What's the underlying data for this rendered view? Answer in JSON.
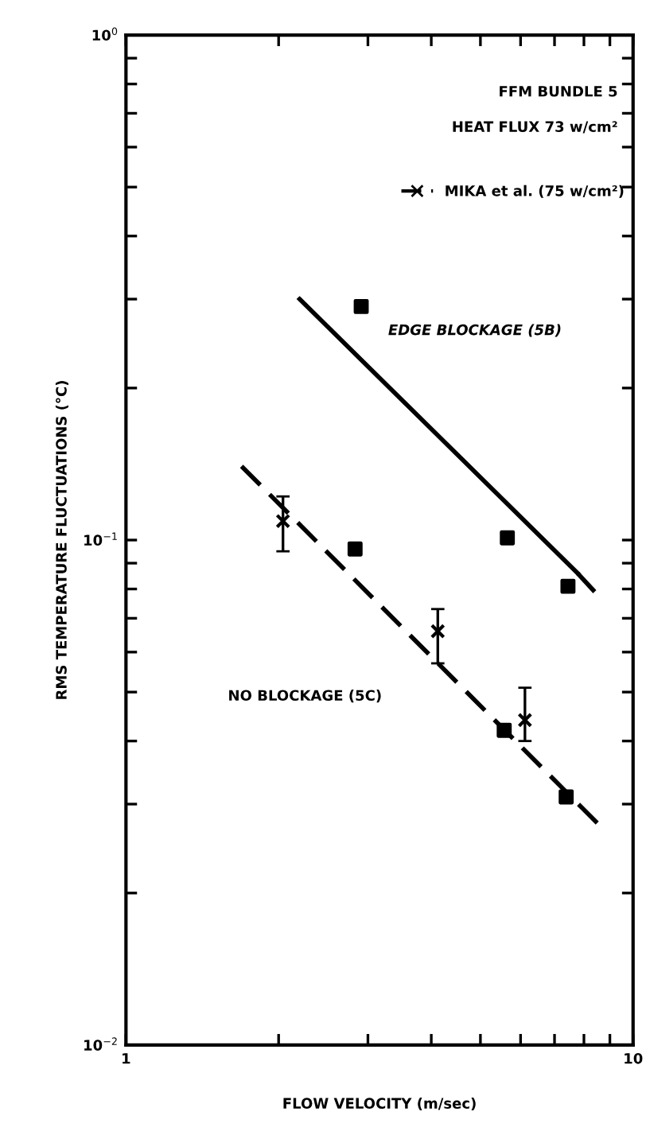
{
  "chart_data": {
    "type": "scatter",
    "xlabel": "FLOW VELOCITY (m/sec)",
    "ylabel": "RMS TEMPERATURE FLUCTUATIONS (°C)",
    "log": "xy",
    "xlim": [
      1,
      10
    ],
    "ylim": [
      0.01,
      1
    ],
    "xticks": [
      1,
      {
        "value": 2,
        "label": null
      },
      {
        "value": 3,
        "label": null
      },
      {
        "value": 4,
        "label": null
      },
      {
        "value": 5,
        "label": null
      },
      {
        "value": 6,
        "label": null
      },
      {
        "value": 7,
        "label": null
      },
      {
        "value": 8,
        "label": null
      },
      {
        "value": 9,
        "label": null
      },
      10
    ],
    "yticks": [
      {
        "value": 0.01,
        "label": "10$^{−2}$"
      },
      {
        "value": 0.02,
        "label": null
      },
      {
        "value": 0.03,
        "label": null
      },
      {
        "value": 0.04,
        "label": null
      },
      {
        "value": 0.05,
        "label": null
      },
      {
        "value": 0.06,
        "label": null
      },
      {
        "value": 0.07,
        "label": null
      },
      {
        "value": 0.08,
        "label": null
      },
      {
        "value": 0.09,
        "label": null
      },
      {
        "value": 0.1,
        "label": "10$^{−1}$"
      },
      {
        "value": 0.2,
        "label": null
      },
      {
        "value": 0.3,
        "label": null
      },
      {
        "value": 0.4,
        "label": null
      },
      {
        "value": 0.5,
        "label": null
      },
      {
        "value": 0.6,
        "label": null
      },
      {
        "value": 0.7,
        "label": null
      },
      {
        "value": 0.8,
        "label": null
      },
      {
        "value": 0.9,
        "label": null
      },
      {
        "value": 1,
        "label": "10$^{0}$"
      }
    ],
    "grid": false,
    "legend": "top right",
    "series": [
      {
        "type": "line",
        "color": "#000000",
        "line_style": "solid",
        "marker": "none",
        "x": [
          2.2,
          7.77
        ],
        "values": [
          0.3,
          0.086
        ]
      },
      {
        "type": "line",
        "color": "#000000",
        "line_style": "dashed",
        "marker": "none",
        "x": [
          7.77,
          8.4
        ],
        "values": [
          0.086,
          0.079
        ]
      },
      {
        "color": "#000000",
        "marker": "square",
        "x": [
          2.91,
          5.65,
          7.44
        ],
        "values": [
          0.29,
          0.101,
          0.081
        ]
      },
      {
        "type": "line",
        "color": "#000000",
        "line_style": "dashed",
        "marker": "none",
        "x": [
          1.69,
          8.66
        ],
        "values": [
          0.14,
          0.027
        ]
      },
      {
        "color": "#000000",
        "marker": "square",
        "x": [
          2.83,
          5.57,
          7.38
        ],
        "values": [
          0.096,
          0.042,
          0.031
        ]
      },
      {
        "name": "MIKA et al. (75 w/cm²)",
        "color": "#000000",
        "marker": "cross",
        "line_style": "dashed",
        "x": [
          2.04,
          4.12,
          6.12
        ],
        "values": [
          0.109,
          0.066,
          0.044
        ],
        "errors": [
          [
            0.095,
            0.122
          ],
          [
            0.057,
            0.073
          ],
          [
            0.04,
            0.051
          ]
        ]
      }
    ],
    "annotations": [
      "FFM BUNDLE 5",
      "HEAT FLUX 73 w/cm²",
      "EDGE BLOCKAGE (5B)",
      "NO BLOCKAGE (5C)"
    ]
  }
}
